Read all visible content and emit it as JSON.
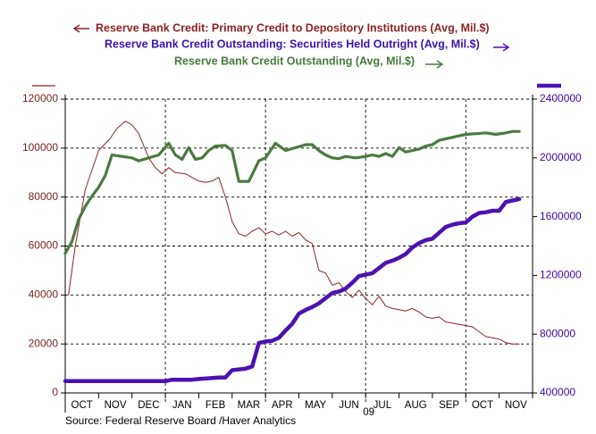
{
  "source": "Source:  Federal Reserve Board /Haver Analytics",
  "chart_data": {
    "type": "line",
    "title": "",
    "year_label": "09",
    "x_categories": [
      "OCT",
      "NOV",
      "DEC",
      "JAN",
      "FEB",
      "MAR",
      "APR",
      "MAY",
      "JUN",
      "JUL",
      "AUG",
      "SEP",
      "OCT",
      "NOV"
    ],
    "left_axis": {
      "range": [
        0,
        120000
      ],
      "ticks": [
        "0",
        "20000",
        "40000",
        "60000",
        "80000",
        "100000",
        "120000"
      ],
      "color": "#7b1f1f"
    },
    "right_axis": {
      "range": [
        400000,
        2400000
      ],
      "ticks": [
        "400000",
        "800000",
        "1200000",
        "1600000",
        "2000000",
        "2400000"
      ],
      "color": "#3b0aa0"
    },
    "series": [
      {
        "name": "Reserve Bank Credit: Primary Credit to Depository Institutions (Avg, Mil.$)",
        "axis": "left",
        "color": "#8b2525",
        "legend_arrow": "left",
        "x": [
          0.1,
          0.3,
          0.6,
          1.0,
          1.35,
          1.55,
          1.8,
          2.0,
          2.2,
          2.5,
          2.7,
          2.9,
          3.1,
          3.3,
          3.6,
          3.8,
          4.0,
          4.2,
          4.4,
          4.6,
          4.8,
          5.0,
          5.2,
          5.4,
          5.6,
          5.8,
          6.0,
          6.2,
          6.4,
          6.6,
          6.8,
          7.0,
          7.2,
          7.4,
          7.6,
          7.8,
          8.0,
          8.2,
          8.4,
          8.6,
          8.8,
          9.0,
          9.2,
          9.4,
          9.6,
          9.8,
          10.0,
          10.2,
          10.4,
          10.6,
          10.8,
          11.0,
          11.2,
          11.4,
          11.6,
          11.8,
          12.0,
          12.2,
          12.4,
          12.6,
          12.8,
          13.0,
          13.2,
          13.4,
          13.6
        ],
        "values": [
          40000,
          60000,
          83000,
          99000,
          104000,
          108000,
          111000,
          109500,
          106000,
          96000,
          92000,
          89500,
          92000,
          90000,
          89500,
          88000,
          86500,
          86000,
          86500,
          88000,
          80000,
          70000,
          65000,
          64000,
          66000,
          67500,
          65000,
          66000,
          64500,
          66000,
          64000,
          65500,
          62500,
          61000,
          50000,
          49000,
          44000,
          45000,
          41500,
          39000,
          42000,
          38500,
          36000,
          39500,
          35500,
          34500,
          34000,
          33500,
          34500,
          33000,
          31000,
          30500,
          31000,
          29000,
          28500,
          28000,
          27500,
          27000,
          25000,
          23000,
          22500,
          22000,
          20500,
          20000,
          20000
        ],
        "width": 1.0
      },
      {
        "name": "Reserve Bank Credit Outstanding: Securities Held Outright (Avg, Mil.$)",
        "axis": "right",
        "color": "#4b12b0",
        "legend_arrow": "right",
        "x": [
          0.0,
          0.5,
          1.0,
          1.5,
          2.0,
          2.5,
          3.0,
          3.2,
          3.5,
          3.8,
          4.0,
          4.3,
          4.6,
          4.8,
          5.0,
          5.2,
          5.4,
          5.6,
          5.8,
          6.0,
          6.2,
          6.4,
          6.6,
          6.8,
          7.0,
          7.2,
          7.4,
          7.6,
          7.8,
          8.0,
          8.2,
          8.4,
          8.6,
          8.8,
          9.0,
          9.2,
          9.4,
          9.6,
          9.8,
          10.0,
          10.2,
          10.4,
          10.6,
          10.8,
          11.0,
          11.2,
          11.4,
          11.6,
          11.8,
          12.0,
          12.2,
          12.4,
          12.6,
          12.8,
          13.0,
          13.2,
          13.4,
          13.6
        ],
        "values": [
          480000,
          480000,
          480000,
          480000,
          480000,
          480000,
          480000,
          490000,
          490000,
          490000,
          495000,
          500000,
          505000,
          505000,
          555000,
          560000,
          565000,
          580000,
          740000,
          750000,
          755000,
          775000,
          825000,
          870000,
          940000,
          965000,
          985000,
          1010000,
          1045000,
          1080000,
          1090000,
          1110000,
          1150000,
          1195000,
          1205000,
          1215000,
          1250000,
          1285000,
          1300000,
          1320000,
          1345000,
          1390000,
          1420000,
          1440000,
          1450000,
          1490000,
          1530000,
          1545000,
          1555000,
          1560000,
          1600000,
          1625000,
          1630000,
          1640000,
          1640000,
          1700000,
          1710000,
          1720000
        ],
        "width": 4.5
      },
      {
        "name": "Reserve Bank Credit Outstanding (Avg, Mil.$)",
        "axis": "right",
        "color": "#4a7a40",
        "legend_arrow": "right",
        "x": [
          0.0,
          0.2,
          0.4,
          0.6,
          0.8,
          1.0,
          1.2,
          1.4,
          1.7,
          2.0,
          2.2,
          2.5,
          2.8,
          3.1,
          3.3,
          3.5,
          3.7,
          3.9,
          4.1,
          4.3,
          4.5,
          4.8,
          5.0,
          5.2,
          5.5,
          5.8,
          6.0,
          6.3,
          6.6,
          6.9,
          7.2,
          7.4,
          7.6,
          7.8,
          8.0,
          8.2,
          8.4,
          8.7,
          9.0,
          9.2,
          9.4,
          9.6,
          9.8,
          10.0,
          10.2,
          10.4,
          10.6,
          10.8,
          11.0,
          11.2,
          11.4,
          11.6,
          11.8,
          12.0,
          12.3,
          12.6,
          12.9,
          13.2,
          13.4,
          13.6
        ],
        "values": [
          1350000,
          1430000,
          1580000,
          1670000,
          1740000,
          1800000,
          1880000,
          2020000,
          2010000,
          2000000,
          1980000,
          2000000,
          2020000,
          2100000,
          2020000,
          1990000,
          2070000,
          1990000,
          2000000,
          2050000,
          2080000,
          2085000,
          2050000,
          1840000,
          1840000,
          1980000,
          2000000,
          2100000,
          2050000,
          2070000,
          2090000,
          2090000,
          2050000,
          2020000,
          2000000,
          1995000,
          2010000,
          2000000,
          2010000,
          2020000,
          2010000,
          2030000,
          2010000,
          2070000,
          2040000,
          2050000,
          2060000,
          2080000,
          2090000,
          2120000,
          2130000,
          2140000,
          2150000,
          2160000,
          2165000,
          2170000,
          2160000,
          2170000,
          2180000,
          2180000
        ],
        "width": 3.2
      }
    ]
  }
}
